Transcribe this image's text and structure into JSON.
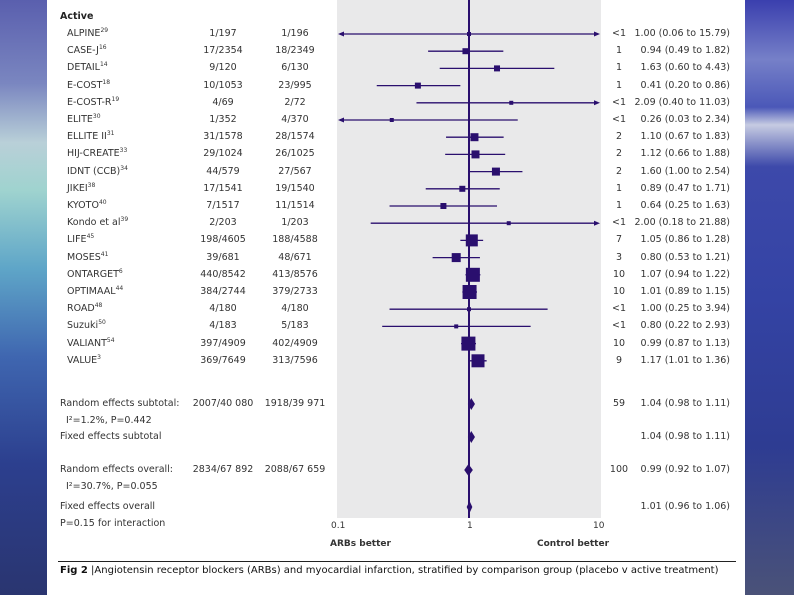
{
  "background": {
    "theme": "ocean-horizon",
    "accent": "#2c3f8e"
  },
  "colors": {
    "mark": "#2a0f6e",
    "plot_bg": "#e9e9ea"
  },
  "section_header": "Active",
  "chart_data": {
    "type": "forest",
    "xscale": "log",
    "xlim": [
      0.1,
      10
    ],
    "xticks": [
      "0.1",
      "1",
      "10"
    ],
    "reference_line": 1,
    "xlabel_left": "ARBs better",
    "xlabel_right": "Control better",
    "studies": [
      {
        "name": "ALPINE",
        "ref": "29",
        "arb": "1/197",
        "control": "1/196",
        "weight": "<1",
        "rr": 1.0,
        "lo": 0.06,
        "hi": 15.79,
        "ci_text": "1.00 (0.06 to 15.79)",
        "arrow_left": true,
        "arrow_right": true
      },
      {
        "name": "CASE-J",
        "ref": "16",
        "arb": "17/2354",
        "control": "18/2349",
        "weight": "1",
        "rr": 0.94,
        "lo": 0.49,
        "hi": 1.82,
        "ci_text": "0.94 (0.49 to 1.82)"
      },
      {
        "name": "DETAIL",
        "ref": "14",
        "arb": "9/120",
        "control": "6/130",
        "weight": "1",
        "rr": 1.63,
        "lo": 0.6,
        "hi": 4.43,
        "ci_text": "1.63 (0.60 to 4.43)"
      },
      {
        "name": "E-COST",
        "ref": "18",
        "arb": "10/1053",
        "control": "23/995",
        "weight": "1",
        "rr": 0.41,
        "lo": 0.2,
        "hi": 0.86,
        "ci_text": "0.41 (0.20 to 0.86)"
      },
      {
        "name": "E-COST-R",
        "ref": "19",
        "arb": "4/69",
        "control": "2/72",
        "weight": "<1",
        "rr": 2.09,
        "lo": 0.4,
        "hi": 11.03,
        "ci_text": "2.09 (0.40 to 11.03)",
        "arrow_right": true
      },
      {
        "name": "ELITE",
        "ref": "30",
        "arb": "1/352",
        "control": "4/370",
        "weight": "<1",
        "rr": 0.26,
        "lo": 0.03,
        "hi": 2.34,
        "ci_text": "0.26 (0.03 to 2.34)",
        "arrow_left": true
      },
      {
        "name": "ELLITE II",
        "ref": "31",
        "arb": "31/1578",
        "control": "28/1574",
        "weight": "2",
        "rr": 1.1,
        "lo": 0.67,
        "hi": 1.83,
        "ci_text": "1.10 (0.67 to 1.83)"
      },
      {
        "name": "HIJ-CREATE",
        "ref": "33",
        "arb": "29/1024",
        "control": "26/1025",
        "weight": "2",
        "rr": 1.12,
        "lo": 0.66,
        "hi": 1.88,
        "ci_text": "1.12 (0.66 to 1.88)"
      },
      {
        "name": "IDNT (CCB)",
        "ref": "34",
        "arb": "44/579",
        "control": "27/567",
        "weight": "2",
        "rr": 1.6,
        "lo": 1.0,
        "hi": 2.54,
        "ci_text": "1.60 (1.00 to 2.54)"
      },
      {
        "name": "JIKEI",
        "ref": "38",
        "arb": "17/1541",
        "control": "19/1540",
        "weight": "1",
        "rr": 0.89,
        "lo": 0.47,
        "hi": 1.71,
        "ci_text": "0.89 (0.47 to 1.71)"
      },
      {
        "name": "KYOTO",
        "ref": "40",
        "arb": "7/1517",
        "control": "11/1514",
        "weight": "1",
        "rr": 0.64,
        "lo": 0.25,
        "hi": 1.63,
        "ci_text": "0.64 (0.25 to 1.63)"
      },
      {
        "name": "Kondo et al",
        "ref": "39",
        "arb": "2/203",
        "control": "1/203",
        "weight": "<1",
        "rr": 2.0,
        "lo": 0.18,
        "hi": 21.88,
        "ci_text": "2.00 (0.18 to 21.88)",
        "arrow_right": true
      },
      {
        "name": "LIFE",
        "ref": "45",
        "arb": "198/4605",
        "control": "188/4588",
        "weight": "7",
        "rr": 1.05,
        "lo": 0.86,
        "hi": 1.28,
        "ci_text": "1.05 (0.86 to 1.28)"
      },
      {
        "name": "MOSES",
        "ref": "41",
        "arb": "39/681",
        "control": "48/671",
        "weight": "3",
        "rr": 0.8,
        "lo": 0.53,
        "hi": 1.21,
        "ci_text": "0.80 (0.53 to 1.21)"
      },
      {
        "name": "ONTARGET",
        "ref": "6",
        "arb": "440/8542",
        "control": "413/8576",
        "weight": "10",
        "rr": 1.07,
        "lo": 0.94,
        "hi": 1.22,
        "ci_text": "1.07 (0.94 to 1.22)"
      },
      {
        "name": "OPTIMAAL",
        "ref": "44",
        "arb": "384/2744",
        "control": "379/2733",
        "weight": "10",
        "rr": 1.01,
        "lo": 0.89,
        "hi": 1.15,
        "ci_text": "1.01 (0.89 to 1.15)"
      },
      {
        "name": "ROAD",
        "ref": "48",
        "arb": "4/180",
        "control": "4/180",
        "weight": "<1",
        "rr": 1.0,
        "lo": 0.25,
        "hi": 3.94,
        "ci_text": "1.00 (0.25 to 3.94)"
      },
      {
        "name": "Suzuki",
        "ref": "50",
        "arb": "4/183",
        "control": "5/183",
        "weight": "<1",
        "rr": 0.8,
        "lo": 0.22,
        "hi": 2.93,
        "ci_text": "0.80 (0.22 to 2.93)"
      },
      {
        "name": "VALIANT",
        "ref": "54",
        "arb": "397/4909",
        "control": "402/4909",
        "weight": "10",
        "rr": 0.99,
        "lo": 0.87,
        "hi": 1.13,
        "ci_text": "0.99 (0.87 to 1.13)"
      },
      {
        "name": "VALUE",
        "ref": "3",
        "arb": "369/7649",
        "control": "313/7596",
        "weight": "9",
        "rr": 1.17,
        "lo": 1.01,
        "hi": 1.36,
        "ci_text": "1.17 (1.01 to 1.36)"
      }
    ],
    "summaries": [
      {
        "label": "Random effects subtotal:",
        "arb": "2007/40 080",
        "control": "1918/39 971",
        "weight": "59",
        "rr": 1.04,
        "lo": 0.98,
        "hi": 1.11,
        "ci_text": "1.04 (0.98 to 1.11)",
        "het": "I²=1.2%, P=0.442"
      },
      {
        "label": "Fixed effects subtotal",
        "rr": 1.04,
        "lo": 0.98,
        "hi": 1.11,
        "ci_text": "1.04 (0.98 to 1.11)"
      },
      {
        "label": "Random effects overall:",
        "arb": "2834/67 892",
        "control": "2088/67 659",
        "weight": "100",
        "rr": 0.99,
        "lo": 0.92,
        "hi": 1.07,
        "ci_text": "0.99 (0.92 to 1.07)",
        "het": "I²=30.7%, P=0.055"
      },
      {
        "label": "Fixed effects overall",
        "rr": 1.01,
        "lo": 0.96,
        "hi": 1.06,
        "ci_text": "1.01 (0.96 to 1.06)"
      }
    ],
    "interaction": "P=0.15 for interaction"
  },
  "caption": {
    "fig": "Fig 2",
    "text": "Angiotensin receptor blockers (ARBs) and myocardial infarction, stratified by comparison group (placebo v active treatment)"
  }
}
